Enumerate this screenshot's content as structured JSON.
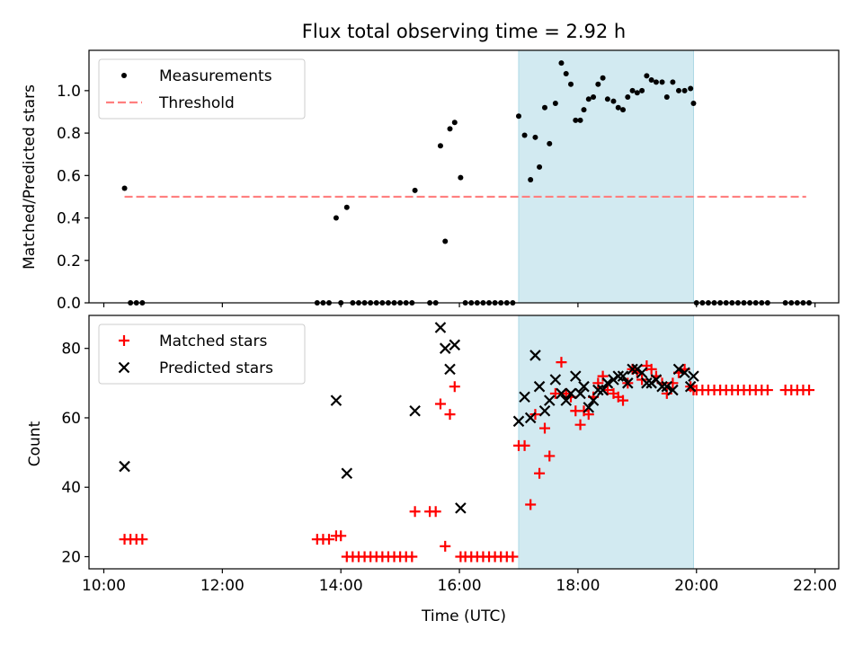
{
  "chart_data": [
    {
      "type": "scatter",
      "title": "Flux total observing time = 2.92 h",
      "xlabel": "",
      "ylabel": "Matched/Predicted stars",
      "xlim": [
        9.75,
        22.4
      ],
      "ylim": [
        0,
        1.19
      ],
      "yticks": [
        0,
        0.2,
        0.4,
        0.6,
        0.8,
        1.0
      ],
      "ytick_labels": [
        "0.0",
        "0.2",
        "0.4",
        "0.6",
        "0.8",
        "1.0"
      ],
      "highlight_span": [
        17.0,
        19.95
      ],
      "highlight_color": "#add8e6",
      "legend_position": "upper left",
      "series": [
        {
          "name": "Measurements",
          "marker": "dot",
          "color": "#000000",
          "points": [
            [
              10.35,
              0.54
            ],
            [
              10.45,
              0.0
            ],
            [
              10.55,
              0.0
            ],
            [
              10.65,
              0.0
            ],
            [
              13.6,
              0.0
            ],
            [
              13.7,
              0.0
            ],
            [
              13.8,
              0.0
            ],
            [
              13.92,
              0.4
            ],
            [
              14.0,
              0.0
            ],
            [
              14.1,
              0.45
            ],
            [
              14.2,
              0.0
            ],
            [
              14.3,
              0.0
            ],
            [
              14.4,
              0.0
            ],
            [
              14.5,
              0.0
            ],
            [
              14.6,
              0.0
            ],
            [
              14.7,
              0.0
            ],
            [
              14.8,
              0.0
            ],
            [
              14.9,
              0.0
            ],
            [
              15.0,
              0.0
            ],
            [
              15.1,
              0.0
            ],
            [
              15.2,
              0.0
            ],
            [
              15.25,
              0.53
            ],
            [
              15.5,
              0.0
            ],
            [
              15.6,
              0.0
            ],
            [
              15.68,
              0.74
            ],
            [
              15.76,
              0.29
            ],
            [
              15.84,
              0.82
            ],
            [
              15.92,
              0.85
            ],
            [
              16.02,
              0.59
            ],
            [
              16.1,
              0.0
            ],
            [
              16.2,
              0.0
            ],
            [
              16.3,
              0.0
            ],
            [
              16.4,
              0.0
            ],
            [
              16.5,
              0.0
            ],
            [
              16.6,
              0.0
            ],
            [
              16.7,
              0.0
            ],
            [
              16.8,
              0.0
            ],
            [
              16.9,
              0.0
            ],
            [
              17.0,
              0.88
            ],
            [
              17.1,
              0.79
            ],
            [
              17.2,
              0.58
            ],
            [
              17.28,
              0.78
            ],
            [
              17.35,
              0.64
            ],
            [
              17.44,
              0.92
            ],
            [
              17.52,
              0.75
            ],
            [
              17.62,
              0.94
            ],
            [
              17.72,
              1.13
            ],
            [
              17.8,
              1.08
            ],
            [
              17.88,
              1.03
            ],
            [
              17.96,
              0.86
            ],
            [
              18.04,
              0.86
            ],
            [
              18.1,
              0.91
            ],
            [
              18.18,
              0.96
            ],
            [
              18.26,
              0.97
            ],
            [
              18.34,
              1.03
            ],
            [
              18.42,
              1.06
            ],
            [
              18.5,
              0.96
            ],
            [
              18.6,
              0.95
            ],
            [
              18.68,
              0.92
            ],
            [
              18.76,
              0.91
            ],
            [
              18.84,
              0.97
            ],
            [
              18.92,
              1.0
            ],
            [
              19.0,
              0.99
            ],
            [
              19.08,
              1.0
            ],
            [
              19.16,
              1.07
            ],
            [
              19.24,
              1.05
            ],
            [
              19.32,
              1.04
            ],
            [
              19.42,
              1.04
            ],
            [
              19.5,
              0.97
            ],
            [
              19.6,
              1.04
            ],
            [
              19.7,
              1.0
            ],
            [
              19.8,
              1.0
            ],
            [
              19.9,
              1.01
            ],
            [
              19.95,
              0.94
            ],
            [
              20.0,
              0.0
            ],
            [
              20.1,
              0.0
            ],
            [
              20.2,
              0.0
            ],
            [
              20.3,
              0.0
            ],
            [
              20.4,
              0.0
            ],
            [
              20.5,
              0.0
            ],
            [
              20.6,
              0.0
            ],
            [
              20.7,
              0.0
            ],
            [
              20.8,
              0.0
            ],
            [
              20.9,
              0.0
            ],
            [
              21.0,
              0.0
            ],
            [
              21.1,
              0.0
            ],
            [
              21.2,
              0.0
            ],
            [
              21.5,
              0.0
            ],
            [
              21.6,
              0.0
            ],
            [
              21.7,
              0.0
            ],
            [
              21.8,
              0.0
            ],
            [
              21.9,
              0.0
            ]
          ]
        },
        {
          "name": "Threshold",
          "line": "dashed",
          "color": "#ff7f7f",
          "points": [
            [
              10.35,
              0.5
            ],
            [
              21.85,
              0.5
            ]
          ]
        }
      ]
    },
    {
      "type": "scatter",
      "title": "",
      "xlabel": "Time (UTC)",
      "ylabel": "Count",
      "xlim": [
        9.75,
        22.4
      ],
      "ylim": [
        16.5,
        89.5
      ],
      "yticks": [
        20,
        40,
        60,
        80
      ],
      "ytick_labels": [
        "20",
        "40",
        "60",
        "80"
      ],
      "xticks": [
        10,
        12,
        14,
        16,
        18,
        20,
        22
      ],
      "xtick_labels": [
        "10:00",
        "12:00",
        "14:00",
        "16:00",
        "18:00",
        "20:00",
        "22:00"
      ],
      "highlight_span": [
        17.0,
        19.95
      ],
      "highlight_color": "#add8e6",
      "legend_position": "upper left",
      "series": [
        {
          "name": "Matched stars",
          "marker": "plus",
          "color": "#ff0000",
          "points": [
            [
              10.35,
              25
            ],
            [
              10.45,
              25
            ],
            [
              10.55,
              25
            ],
            [
              10.65,
              25
            ],
            [
              13.6,
              25
            ],
            [
              13.7,
              25
            ],
            [
              13.8,
              25
            ],
            [
              13.92,
              26
            ],
            [
              14.0,
              26
            ],
            [
              14.1,
              20
            ],
            [
              14.2,
              20
            ],
            [
              14.3,
              20
            ],
            [
              14.4,
              20
            ],
            [
              14.5,
              20
            ],
            [
              14.6,
              20
            ],
            [
              14.7,
              20
            ],
            [
              14.8,
              20
            ],
            [
              14.9,
              20
            ],
            [
              15.0,
              20
            ],
            [
              15.1,
              20
            ],
            [
              15.2,
              20
            ],
            [
              15.25,
              33
            ],
            [
              15.5,
              33
            ],
            [
              15.6,
              33
            ],
            [
              15.68,
              64
            ],
            [
              15.76,
              23
            ],
            [
              15.84,
              61
            ],
            [
              15.92,
              69
            ],
            [
              16.02,
              20
            ],
            [
              16.1,
              20
            ],
            [
              16.2,
              20
            ],
            [
              16.3,
              20
            ],
            [
              16.4,
              20
            ],
            [
              16.5,
              20
            ],
            [
              16.6,
              20
            ],
            [
              16.7,
              20
            ],
            [
              16.8,
              20
            ],
            [
              16.9,
              20
            ],
            [
              17.0,
              52
            ],
            [
              17.1,
              52
            ],
            [
              17.2,
              35
            ],
            [
              17.28,
              61
            ],
            [
              17.35,
              44
            ],
            [
              17.44,
              57
            ],
            [
              17.52,
              49
            ],
            [
              17.62,
              67
            ],
            [
              17.72,
              76
            ],
            [
              17.8,
              67
            ],
            [
              17.88,
              66
            ],
            [
              17.96,
              62
            ],
            [
              18.04,
              58
            ],
            [
              18.1,
              62
            ],
            [
              18.18,
              61
            ],
            [
              18.26,
              66
            ],
            [
              18.34,
              70
            ],
            [
              18.42,
              72
            ],
            [
              18.5,
              68
            ],
            [
              18.6,
              67
            ],
            [
              18.68,
              66
            ],
            [
              18.76,
              65
            ],
            [
              18.84,
              70
            ],
            [
              18.92,
              74
            ],
            [
              19.0,
              73
            ],
            [
              19.08,
              71
            ],
            [
              19.16,
              75
            ],
            [
              19.24,
              74
            ],
            [
              19.32,
              72
            ],
            [
              19.42,
              70
            ],
            [
              19.5,
              67
            ],
            [
              19.6,
              70
            ],
            [
              19.7,
              73
            ],
            [
              19.8,
              74
            ],
            [
              19.9,
              69
            ],
            [
              19.95,
              68
            ],
            [
              20.0,
              68
            ],
            [
              20.1,
              68
            ],
            [
              20.2,
              68
            ],
            [
              20.3,
              68
            ],
            [
              20.4,
              68
            ],
            [
              20.5,
              68
            ],
            [
              20.6,
              68
            ],
            [
              20.7,
              68
            ],
            [
              20.8,
              68
            ],
            [
              20.9,
              68
            ],
            [
              21.0,
              68
            ],
            [
              21.1,
              68
            ],
            [
              21.2,
              68
            ],
            [
              21.5,
              68
            ],
            [
              21.6,
              68
            ],
            [
              21.7,
              68
            ],
            [
              21.8,
              68
            ],
            [
              21.9,
              68
            ]
          ]
        },
        {
          "name": "Predicted stars",
          "marker": "x",
          "color": "#000000",
          "points": [
            [
              10.35,
              46
            ],
            [
              13.92,
              65
            ],
            [
              14.1,
              44
            ],
            [
              15.25,
              62
            ],
            [
              15.68,
              86
            ],
            [
              15.76,
              80
            ],
            [
              15.84,
              74
            ],
            [
              15.92,
              81
            ],
            [
              16.02,
              34
            ],
            [
              17.0,
              59
            ],
            [
              17.1,
              66
            ],
            [
              17.2,
              60
            ],
            [
              17.28,
              78
            ],
            [
              17.35,
              69
            ],
            [
              17.44,
              62
            ],
            [
              17.52,
              65
            ],
            [
              17.62,
              71
            ],
            [
              17.72,
              67
            ],
            [
              17.8,
              65
            ],
            [
              17.88,
              67
            ],
            [
              17.96,
              72
            ],
            [
              18.04,
              67
            ],
            [
              18.1,
              69
            ],
            [
              18.18,
              63
            ],
            [
              18.26,
              65
            ],
            [
              18.34,
              68
            ],
            [
              18.42,
              68
            ],
            [
              18.5,
              70
            ],
            [
              18.6,
              71
            ],
            [
              18.68,
              72
            ],
            [
              18.76,
              72
            ],
            [
              18.84,
              70
            ],
            [
              18.92,
              74
            ],
            [
              19.0,
              74
            ],
            [
              19.08,
              73
            ],
            [
              19.16,
              70
            ],
            [
              19.24,
              70
            ],
            [
              19.32,
              71
            ],
            [
              19.42,
              69
            ],
            [
              19.5,
              69
            ],
            [
              19.6,
              68
            ],
            [
              19.7,
              74
            ],
            [
              19.8,
              73
            ],
            [
              19.9,
              69
            ],
            [
              19.95,
              72
            ]
          ]
        }
      ]
    }
  ]
}
